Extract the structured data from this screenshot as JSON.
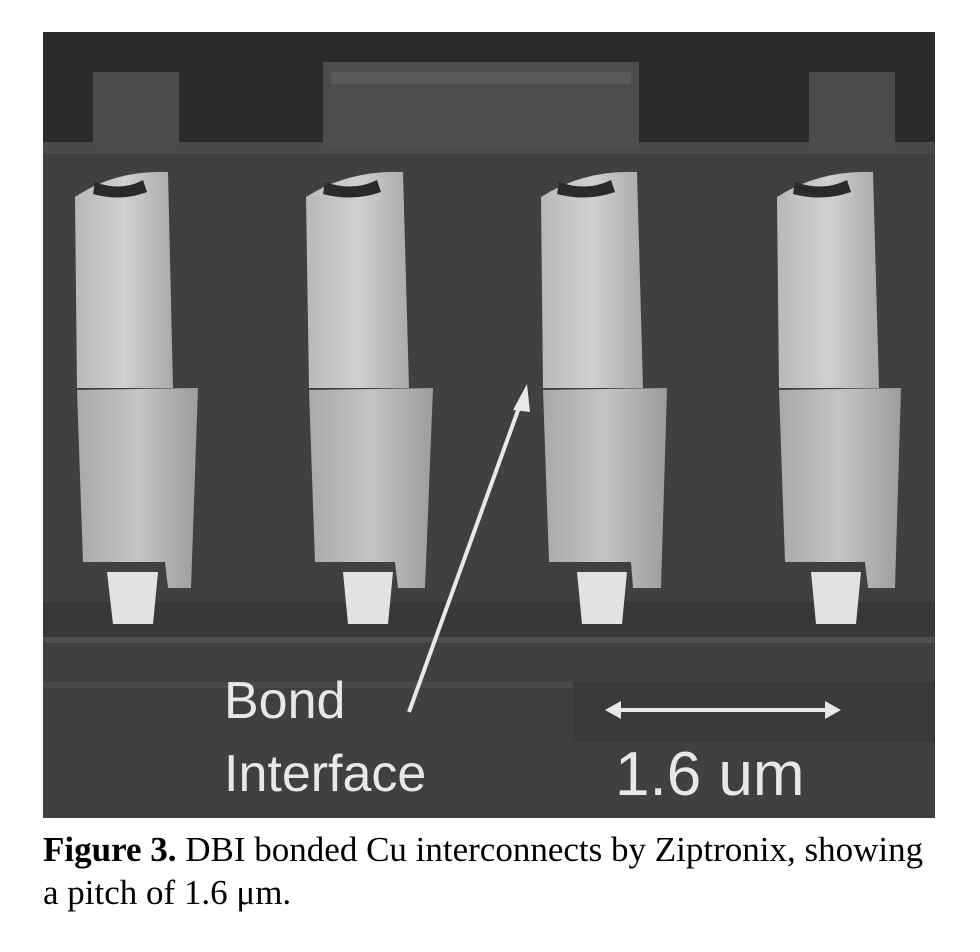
{
  "figure": {
    "annotation_line1": "Bond",
    "annotation_line2": "Interface",
    "scale_bar_label": "1.6 um"
  },
  "caption": {
    "figure_number": "Figure 3.",
    "text": " DBI bonded Cu interconnects by Ziptronix, showing a pitch of 1.6 μm."
  },
  "colors": {
    "background": "#3f3f3f",
    "metal": "#c9c9c9",
    "annotation": "#e8e8e8"
  }
}
